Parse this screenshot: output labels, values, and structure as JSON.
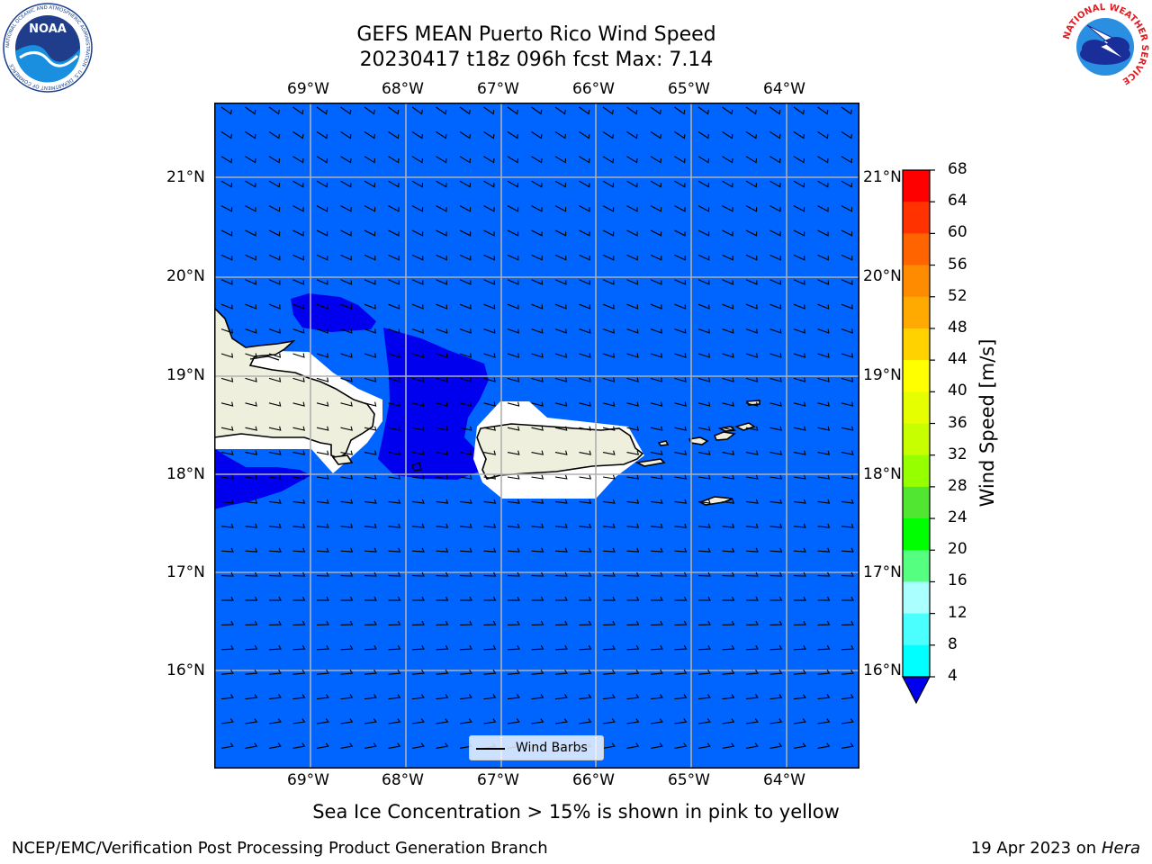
{
  "title": {
    "line1": "GEFS MEAN Puerto Rico Wind Speed",
    "line2": "20230417 t18z 096h fcst   Max: 7.14"
  },
  "map": {
    "lon_labels": [
      "69°W",
      "68°W",
      "67°W",
      "66°W",
      "65°W",
      "64°W"
    ],
    "lat_labels": [
      "21°N",
      "20°N",
      "19°N",
      "18°N",
      "17°N",
      "16°N"
    ],
    "legend_label": "Wind Barbs",
    "colors": {
      "ocean_4_8": "#0064ff",
      "under_4": "#0000ee",
      "land": "#efefde",
      "masked": "#ffffff"
    }
  },
  "colorbar": {
    "title": "Wind Speed [m/s]",
    "ticks": [
      "68",
      "64",
      "60",
      "56",
      "52",
      "48",
      "44",
      "40",
      "36",
      "32",
      "28",
      "24",
      "20",
      "16",
      "12",
      "8",
      "4"
    ],
    "colors": [
      "#ff0000",
      "#ff3200",
      "#ff6400",
      "#ff8c00",
      "#ffaa00",
      "#ffd200",
      "#ffff00",
      "#e6ff00",
      "#c8ff00",
      "#96ff00",
      "#50e632",
      "#00ff00",
      "#55ff80",
      "#aaffff",
      "#4cffff",
      "#00ffff",
      "#0064ff"
    ],
    "under_color": "#0000ee"
  },
  "caption": "Sea Ice Concentration > 15% is shown in pink to yellow",
  "footer": {
    "left": "NCEP/EMC/Verification Post Processing Product Generation Branch",
    "right_date": "19 Apr 2023 on ",
    "right_machine": "Hera"
  },
  "logos": {
    "noaa": {
      "text": "NOAA",
      "ring_text": "NATIONAL OCEANIC AND ATMOSPHERIC ADMINISTRATION · U.S. DEPARTMENT OF COMMERCE"
    },
    "nws": {
      "ring_text": "NATIONAL WEATHER SERVICE"
    }
  }
}
